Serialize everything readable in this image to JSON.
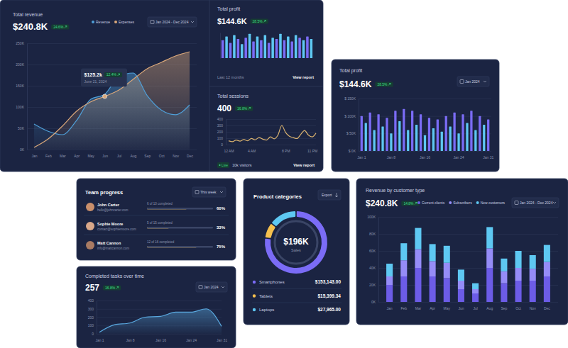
{
  "chart_data": [
    {
      "type": "area",
      "title": "Total revenue",
      "subtitle": "$240.8K",
      "annotations": {
        "change": "24.6%",
        "period": "Jan 2024 - Dec 2024",
        "tooltip_value": "$125.2k",
        "tooltip_change": "12.4%",
        "tooltip_date": "June 21, 2024"
      },
      "categories": [
        "Jan",
        "Feb",
        "Mar",
        "Apr",
        "May",
        "Jun",
        "Jul",
        "Aug",
        "Sep",
        "Oct",
        "Nov",
        "Dec"
      ],
      "series": [
        {
          "name": "Revenue",
          "color": "#4f9fd8",
          "values": [
            60,
            43,
            35,
            68,
            118,
            130,
            172,
            180,
            127,
            93,
            82,
            105
          ]
        },
        {
          "name": "Expenses",
          "color": "#d9a77a",
          "values": [
            5,
            25,
            55,
            90,
            112,
            125,
            140,
            165,
            190,
            205,
            220,
            230
          ]
        }
      ],
      "ylim": [
        0,
        250
      ],
      "yticks": [
        {
          "value": 0,
          "label": "0K"
        },
        {
          "value": 50,
          "label": "50K"
        },
        {
          "value": 100,
          "label": "100K"
        },
        {
          "value": 150,
          "label": "150K"
        },
        {
          "value": 200,
          "label": "200K"
        },
        {
          "value": 250,
          "label": "250K"
        }
      ],
      "grid": true,
      "legend": "top"
    },
    {
      "type": "bar",
      "title": "Total profit",
      "subtitle": "$144.6K",
      "annotations": {
        "change": "28.5%",
        "period": "Last 12 months",
        "link": "View report"
      },
      "categories": [
        null,
        null,
        null,
        null,
        null,
        null,
        null,
        null,
        null,
        null,
        null,
        null,
        null,
        null,
        null,
        null,
        null,
        null,
        null,
        null,
        null,
        null,
        null,
        null
      ],
      "values": [
        70,
        85,
        60,
        90,
        75,
        55,
        80,
        95,
        65,
        85,
        70,
        90,
        60,
        80,
        75,
        95,
        70,
        85,
        65,
        90,
        80,
        70,
        85,
        75
      ],
      "colors": [
        "#7b6cf6",
        "#5ec8f2",
        "#7b6cf6",
        "#5ec8f2",
        "#7b6cf6",
        "#5ec8f2",
        "#7b6cf6",
        "#5ec8f2",
        "#7b6cf6",
        "#5ec8f2",
        "#7b6cf6",
        "#5ec8f2",
        "#7b6cf6",
        "#5ec8f2",
        "#7b6cf6",
        "#5ec8f2",
        "#7b6cf6",
        "#5ec8f2",
        "#7b6cf6",
        "#5ec8f2",
        "#7b6cf6",
        "#5ec8f2",
        "#7b6cf6",
        "#5ec8f2"
      ],
      "ylim": [
        0,
        100
      ],
      "tick_labels": false
    },
    {
      "type": "line",
      "title": "Total sessions",
      "subtitle": "400",
      "annotations": {
        "change": "16.8%",
        "status": "Live",
        "visitors": "10k visitors",
        "link": "View report"
      },
      "categories": [
        "12 AM",
        null,
        null,
        null,
        null,
        null,
        "4 AM",
        null,
        null,
        null,
        null,
        null,
        null,
        null,
        null,
        "8 PM",
        null,
        null,
        null,
        null,
        null,
        null,
        "11 PM",
        null
      ],
      "values": [
        60,
        45,
        70,
        55,
        80,
        60,
        95,
        75,
        110,
        85,
        70,
        120,
        90,
        150,
        300,
        190,
        130,
        110,
        95,
        160,
        220,
        150,
        120,
        180
      ],
      "color": "#d9b26f",
      "ylim": [
        0,
        400
      ],
      "yticks": [
        0,
        100,
        200,
        300,
        400
      ],
      "grid": true
    },
    {
      "type": "bar",
      "title": "Total profit",
      "subtitle": "$144.6K",
      "annotations": {
        "change": "28.5%",
        "period": "Jan 2024"
      },
      "categories": [
        "Jan 1",
        null,
        null,
        null,
        null,
        null,
        null,
        "Jan 8",
        null,
        null,
        null,
        null,
        null,
        null,
        null,
        "Jan 16",
        null,
        null,
        null,
        null,
        null,
        null,
        null,
        "Jan 24",
        null,
        null,
        null,
        null,
        null,
        null,
        "Jan 31"
      ],
      "values": [
        100,
        80,
        110,
        60,
        105,
        70,
        95,
        50,
        115,
        85,
        120,
        60,
        115,
        75,
        105,
        45,
        95,
        65,
        90,
        55,
        100,
        70,
        110,
        50,
        105,
        80,
        115,
        60,
        100,
        75,
        90
      ],
      "colors": [
        "#7b6cf6",
        "#5ec8f2",
        "#7b6cf6",
        "#5ec8f2",
        "#7b6cf6",
        "#5ec8f2",
        "#7b6cf6",
        "#5ec8f2",
        "#7b6cf6",
        "#5ec8f2",
        "#7b6cf6",
        "#5ec8f2",
        "#7b6cf6",
        "#5ec8f2",
        "#7b6cf6",
        "#5ec8f2",
        "#7b6cf6",
        "#5ec8f2",
        "#7b6cf6",
        "#5ec8f2",
        "#7b6cf6",
        "#5ec8f2",
        "#7b6cf6",
        "#5ec8f2",
        "#7b6cf6",
        "#5ec8f2",
        "#7b6cf6",
        "#5ec8f2",
        "#7b6cf6",
        "#5ec8f2",
        "#7b6cf6"
      ],
      "ylim": [
        0,
        150
      ],
      "yticks": [
        {
          "value": 0,
          "label": "$ 0K"
        },
        {
          "value": 50,
          "label": "$ 50K"
        },
        {
          "value": 100,
          "label": "$ 100K"
        },
        {
          "value": 150,
          "label": "$ 150K"
        }
      ],
      "grid": true
    },
    {
      "type": "bar",
      "orientation": "horizontal",
      "title": "Team progress",
      "annotations": {
        "period": "This week",
        "emails": [
          "hello@johncarter.com",
          "contact@sophiemoore.com",
          "info@mattcannon.com"
        ],
        "status": [
          "6 of 10 completed",
          "5 of 15 completed",
          "12 of 16 completed"
        ]
      },
      "categories": [
        "John Carter",
        "Sophie Moore",
        "Matt Cannon"
      ],
      "values": [
        60,
        33,
        75
      ],
      "value_labels": [
        "60%",
        "33%",
        "75%"
      ],
      "data_labels": true,
      "color": "#f5c04e",
      "xlim": [
        0,
        100
      ],
      "tick_labels": false
    },
    {
      "type": "area",
      "title": "Completed tasks over time",
      "subtitle": "257",
      "annotations": {
        "change": "16.8%",
        "period": "Jan 2024"
      },
      "categories": [
        "Jan 1",
        null,
        "Jan 8",
        null,
        "Jan 16",
        null,
        "Jan 24",
        null,
        "Jan 31"
      ],
      "values": [
        20,
        110,
        130,
        200,
        210,
        260,
        260,
        300,
        90
      ],
      "color": "#5aa9e0",
      "ylim": [
        0,
        400
      ],
      "yticks": [
        0,
        100,
        200,
        300,
        400
      ],
      "grid": true
    },
    {
      "type": "pie",
      "title": "Product categories",
      "subtitle": "$196K",
      "annotations": {
        "center": "Sales",
        "button": "Export"
      },
      "categories": [
        "Smartphones",
        "Tablets",
        "Laptops"
      ],
      "values": [
        153143,
        15399.34,
        27965
      ],
      "value_labels": [
        "$153,143.00",
        "$15,399.34",
        "$27,965.00"
      ],
      "colors": [
        "#7b6cf6",
        "#f5c04e",
        "#5ec8f2"
      ]
    },
    {
      "type": "bar",
      "stacked": true,
      "title": "Revenue by customer type",
      "subtitle": "$240.8K",
      "annotations": {
        "change": "14.8%",
        "period": "Jan 2024 - Dec 2024"
      },
      "categories": [
        "Jan",
        "Feb",
        "Mar",
        "Apr",
        "May",
        "Jun",
        "Jul",
        "Aug",
        "Sep",
        "Oct",
        "Nov",
        "Dec"
      ],
      "series": [
        {
          "name": "Current clients",
          "color": "#6c5ce7",
          "values": [
            20,
            30,
            40,
            30,
            28,
            15,
            10,
            40,
            22,
            25,
            25,
            30
          ]
        },
        {
          "name": "Subscribers",
          "color": "#958cf7",
          "values": [
            10,
            19,
            22,
            18,
            18,
            10,
            5,
            23,
            14,
            15,
            14,
            17
          ]
        },
        {
          "name": "New customers",
          "color": "#5ec8f2",
          "values": [
            15,
            20,
            25,
            20,
            20,
            13,
            7,
            25,
            15,
            20,
            16,
            20
          ]
        }
      ],
      "ylim": [
        0,
        100
      ],
      "yticks": [
        {
          "value": 0,
          "label": "0K"
        },
        {
          "value": 20,
          "label": "20K"
        },
        {
          "value": 40,
          "label": "40K"
        },
        {
          "value": 60,
          "label": "60K"
        },
        {
          "value": 80,
          "label": "80K"
        },
        {
          "value": 100,
          "label": "100K"
        }
      ],
      "grid": true,
      "legend": "top"
    }
  ]
}
